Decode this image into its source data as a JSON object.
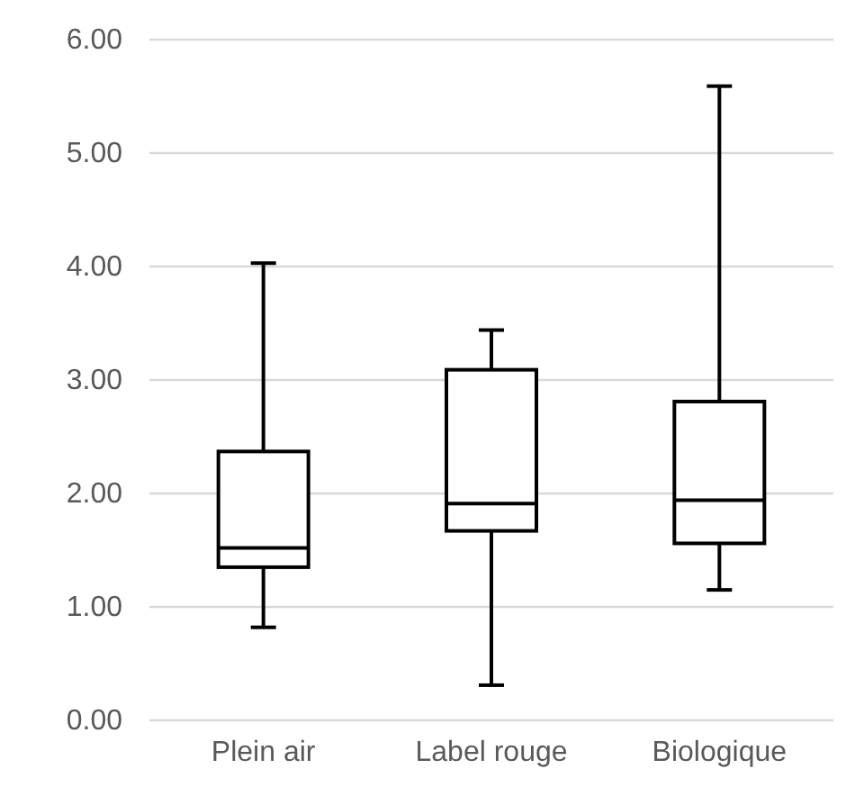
{
  "chart_data": {
    "type": "box",
    "categories": [
      "Plein air",
      "Label rouge",
      "Biologique"
    ],
    "boxes": [
      {
        "low": 0.82,
        "q1": 1.35,
        "median": 1.52,
        "q3": 2.37,
        "high": 4.03
      },
      {
        "low": 0.31,
        "q1": 1.67,
        "median": 1.91,
        "q3": 3.09,
        "high": 3.44
      },
      {
        "low": 1.15,
        "q1": 1.56,
        "median": 1.94,
        "q3": 2.81,
        "high": 5.59
      }
    ],
    "color": "#000000",
    "ylim": [
      0,
      6
    ],
    "yticks": [
      {
        "value": 0,
        "label": "0.00"
      },
      {
        "value": 1,
        "label": "1.00"
      },
      {
        "value": 2,
        "label": "2.00"
      },
      {
        "value": 3,
        "label": "3.00"
      },
      {
        "value": 4,
        "label": "4.00"
      },
      {
        "value": 5,
        "label": "5.00"
      },
      {
        "value": 6,
        "label": "6.00"
      }
    ],
    "grid": "y"
  }
}
